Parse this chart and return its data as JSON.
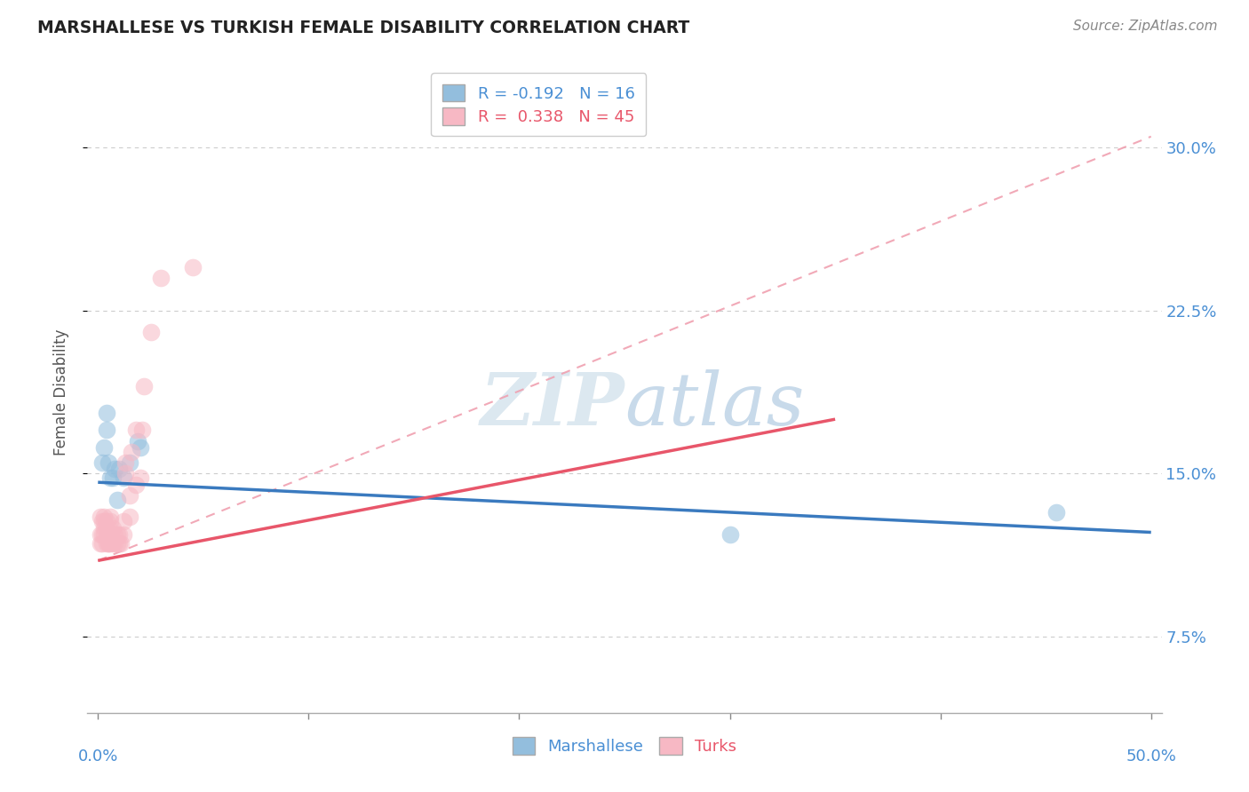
{
  "title": "MARSHALLESE VS TURKISH FEMALE DISABILITY CORRELATION CHART",
  "source": "Source: ZipAtlas.com",
  "ylabel": "Female Disability",
  "ytick_labels": [
    "7.5%",
    "15.0%",
    "22.5%",
    "30.0%"
  ],
  "ytick_values": [
    0.075,
    0.15,
    0.225,
    0.3
  ],
  "xtick_labels": [
    "0.0%",
    "",
    "",
    "",
    "",
    "50.0%"
  ],
  "xtick_values": [
    0.0,
    0.1,
    0.2,
    0.3,
    0.4,
    0.5
  ],
  "xlim": [
    -0.005,
    0.505
  ],
  "ylim": [
    0.04,
    0.335
  ],
  "legend_r_blue": "-0.192",
  "legend_n_blue": "16",
  "legend_r_pink": "0.338",
  "legend_n_pink": "45",
  "blue_scatter_color": "#93bedd",
  "pink_scatter_color": "#f7b8c4",
  "blue_line_color": "#3a7abf",
  "pink_line_color": "#e8566a",
  "pink_dash_color": "#f0a0b0",
  "grid_color": "#cccccc",
  "watermark_color": "#dce8f0",
  "blue_trendline": [
    0.0,
    0.5,
    0.146,
    0.123
  ],
  "pink_trendline": [
    0.0,
    0.35,
    0.11,
    0.175
  ],
  "pink_dashline": [
    0.0,
    0.5,
    0.11,
    0.305
  ],
  "marshallese_x": [
    0.002,
    0.003,
    0.004,
    0.004,
    0.005,
    0.006,
    0.007,
    0.008,
    0.009,
    0.01,
    0.012,
    0.015,
    0.019,
    0.02,
    0.3,
    0.455
  ],
  "marshallese_y": [
    0.155,
    0.162,
    0.17,
    0.178,
    0.155,
    0.148,
    0.148,
    0.152,
    0.138,
    0.152,
    0.148,
    0.155,
    0.165,
    0.162,
    0.122,
    0.132
  ],
  "turks_x": [
    0.001,
    0.001,
    0.001,
    0.002,
    0.002,
    0.002,
    0.003,
    0.003,
    0.003,
    0.003,
    0.004,
    0.004,
    0.004,
    0.005,
    0.005,
    0.005,
    0.005,
    0.006,
    0.006,
    0.006,
    0.006,
    0.007,
    0.007,
    0.008,
    0.008,
    0.009,
    0.009,
    0.01,
    0.01,
    0.011,
    0.012,
    0.012,
    0.013,
    0.013,
    0.015,
    0.015,
    0.016,
    0.018,
    0.018,
    0.02,
    0.021,
    0.022,
    0.025,
    0.03,
    0.045
  ],
  "turks_y": [
    0.118,
    0.122,
    0.13,
    0.118,
    0.122,
    0.128,
    0.122,
    0.125,
    0.128,
    0.13,
    0.118,
    0.125,
    0.128,
    0.118,
    0.118,
    0.122,
    0.125,
    0.118,
    0.122,
    0.128,
    0.13,
    0.118,
    0.125,
    0.118,
    0.122,
    0.118,
    0.122,
    0.118,
    0.122,
    0.118,
    0.122,
    0.128,
    0.15,
    0.155,
    0.13,
    0.14,
    0.16,
    0.145,
    0.17,
    0.148,
    0.17,
    0.19,
    0.215,
    0.24,
    0.245
  ]
}
